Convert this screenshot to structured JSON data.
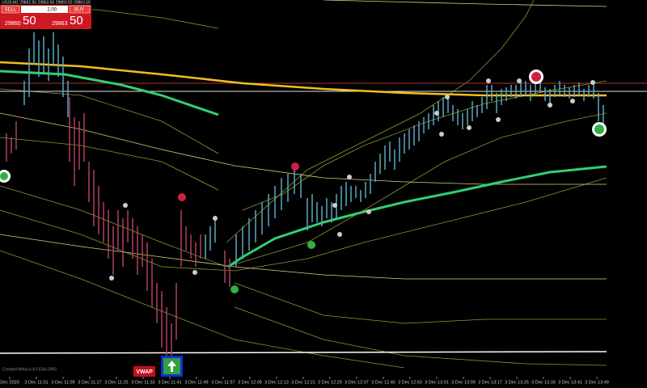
{
  "trade_panel": {
    "symbol_line": "US30,M1 29862.50 29863.50 29860.50 29863.50",
    "sell_label": "SELL",
    "lot": "2.00",
    "buy_label": "BUY",
    "sell_price_main": "29860",
    "sell_price_big": "50",
    "buy_price_main": "29863",
    "buy_price_big": "50"
  },
  "time_axis": {
    "labels": [
      "Dec 2020",
      "3 Dec 11:01",
      "3 Dec 11:09",
      "3 Dec 11:17",
      "3 Dec 11:25",
      "3 Dec 11:33",
      "3 Dec 11:41",
      "3 Dec 11:49",
      "3 Dec 11:57",
      "3 Dec 12:05",
      "3 Dec 12:13",
      "3 Dec 12:21",
      "3 Dec 12:29",
      "3 Dec 12:37",
      "3 Dec 12:45",
      "3 Dec 12:53",
      "3 Dec 13:01",
      "3 Dec 13:09",
      "3 Dec 13:17",
      "3 Dec 13:25",
      "3 Dec 13:33",
      "3 Dec 13:41",
      "3 Dec 13:49"
    ]
  },
  "indicator": {
    "vwap": "VWAP"
  },
  "watermark": "Created Meta-vl.4 FXSA.ORG"
}
